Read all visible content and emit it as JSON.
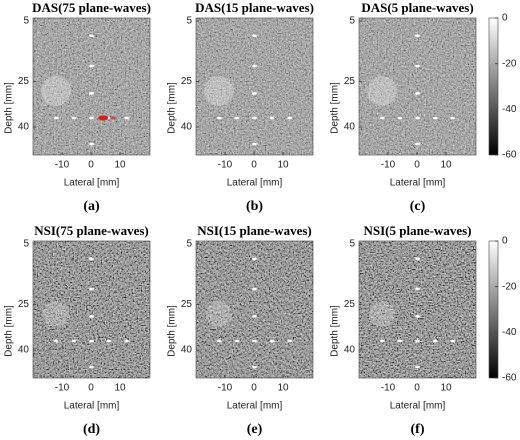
{
  "panels": [
    {
      "title": "DAS(75 plane-waves)",
      "caption": "(a)"
    },
    {
      "title": "DAS(15 plane-waves)",
      "caption": "(b)"
    },
    {
      "title": "DAS(5 plane-waves)",
      "caption": "(c)"
    },
    {
      "title": "NSI(75 plane-waves)",
      "caption": "(d)"
    },
    {
      "title": "NSI(15 plane-waves)",
      "caption": "(e)"
    },
    {
      "title": "NSI(5 plane-waves)",
      "caption": "(f)"
    }
  ],
  "y_axis": {
    "label": "Depth [mm]",
    "ticks": [
      5,
      25,
      40
    ]
  },
  "x_axis": {
    "label": "Lateral [mm]",
    "ticks": [
      -10,
      0,
      10
    ]
  },
  "colorbar": {
    "ticks": [
      0,
      -20,
      -40,
      -60
    ]
  }
}
